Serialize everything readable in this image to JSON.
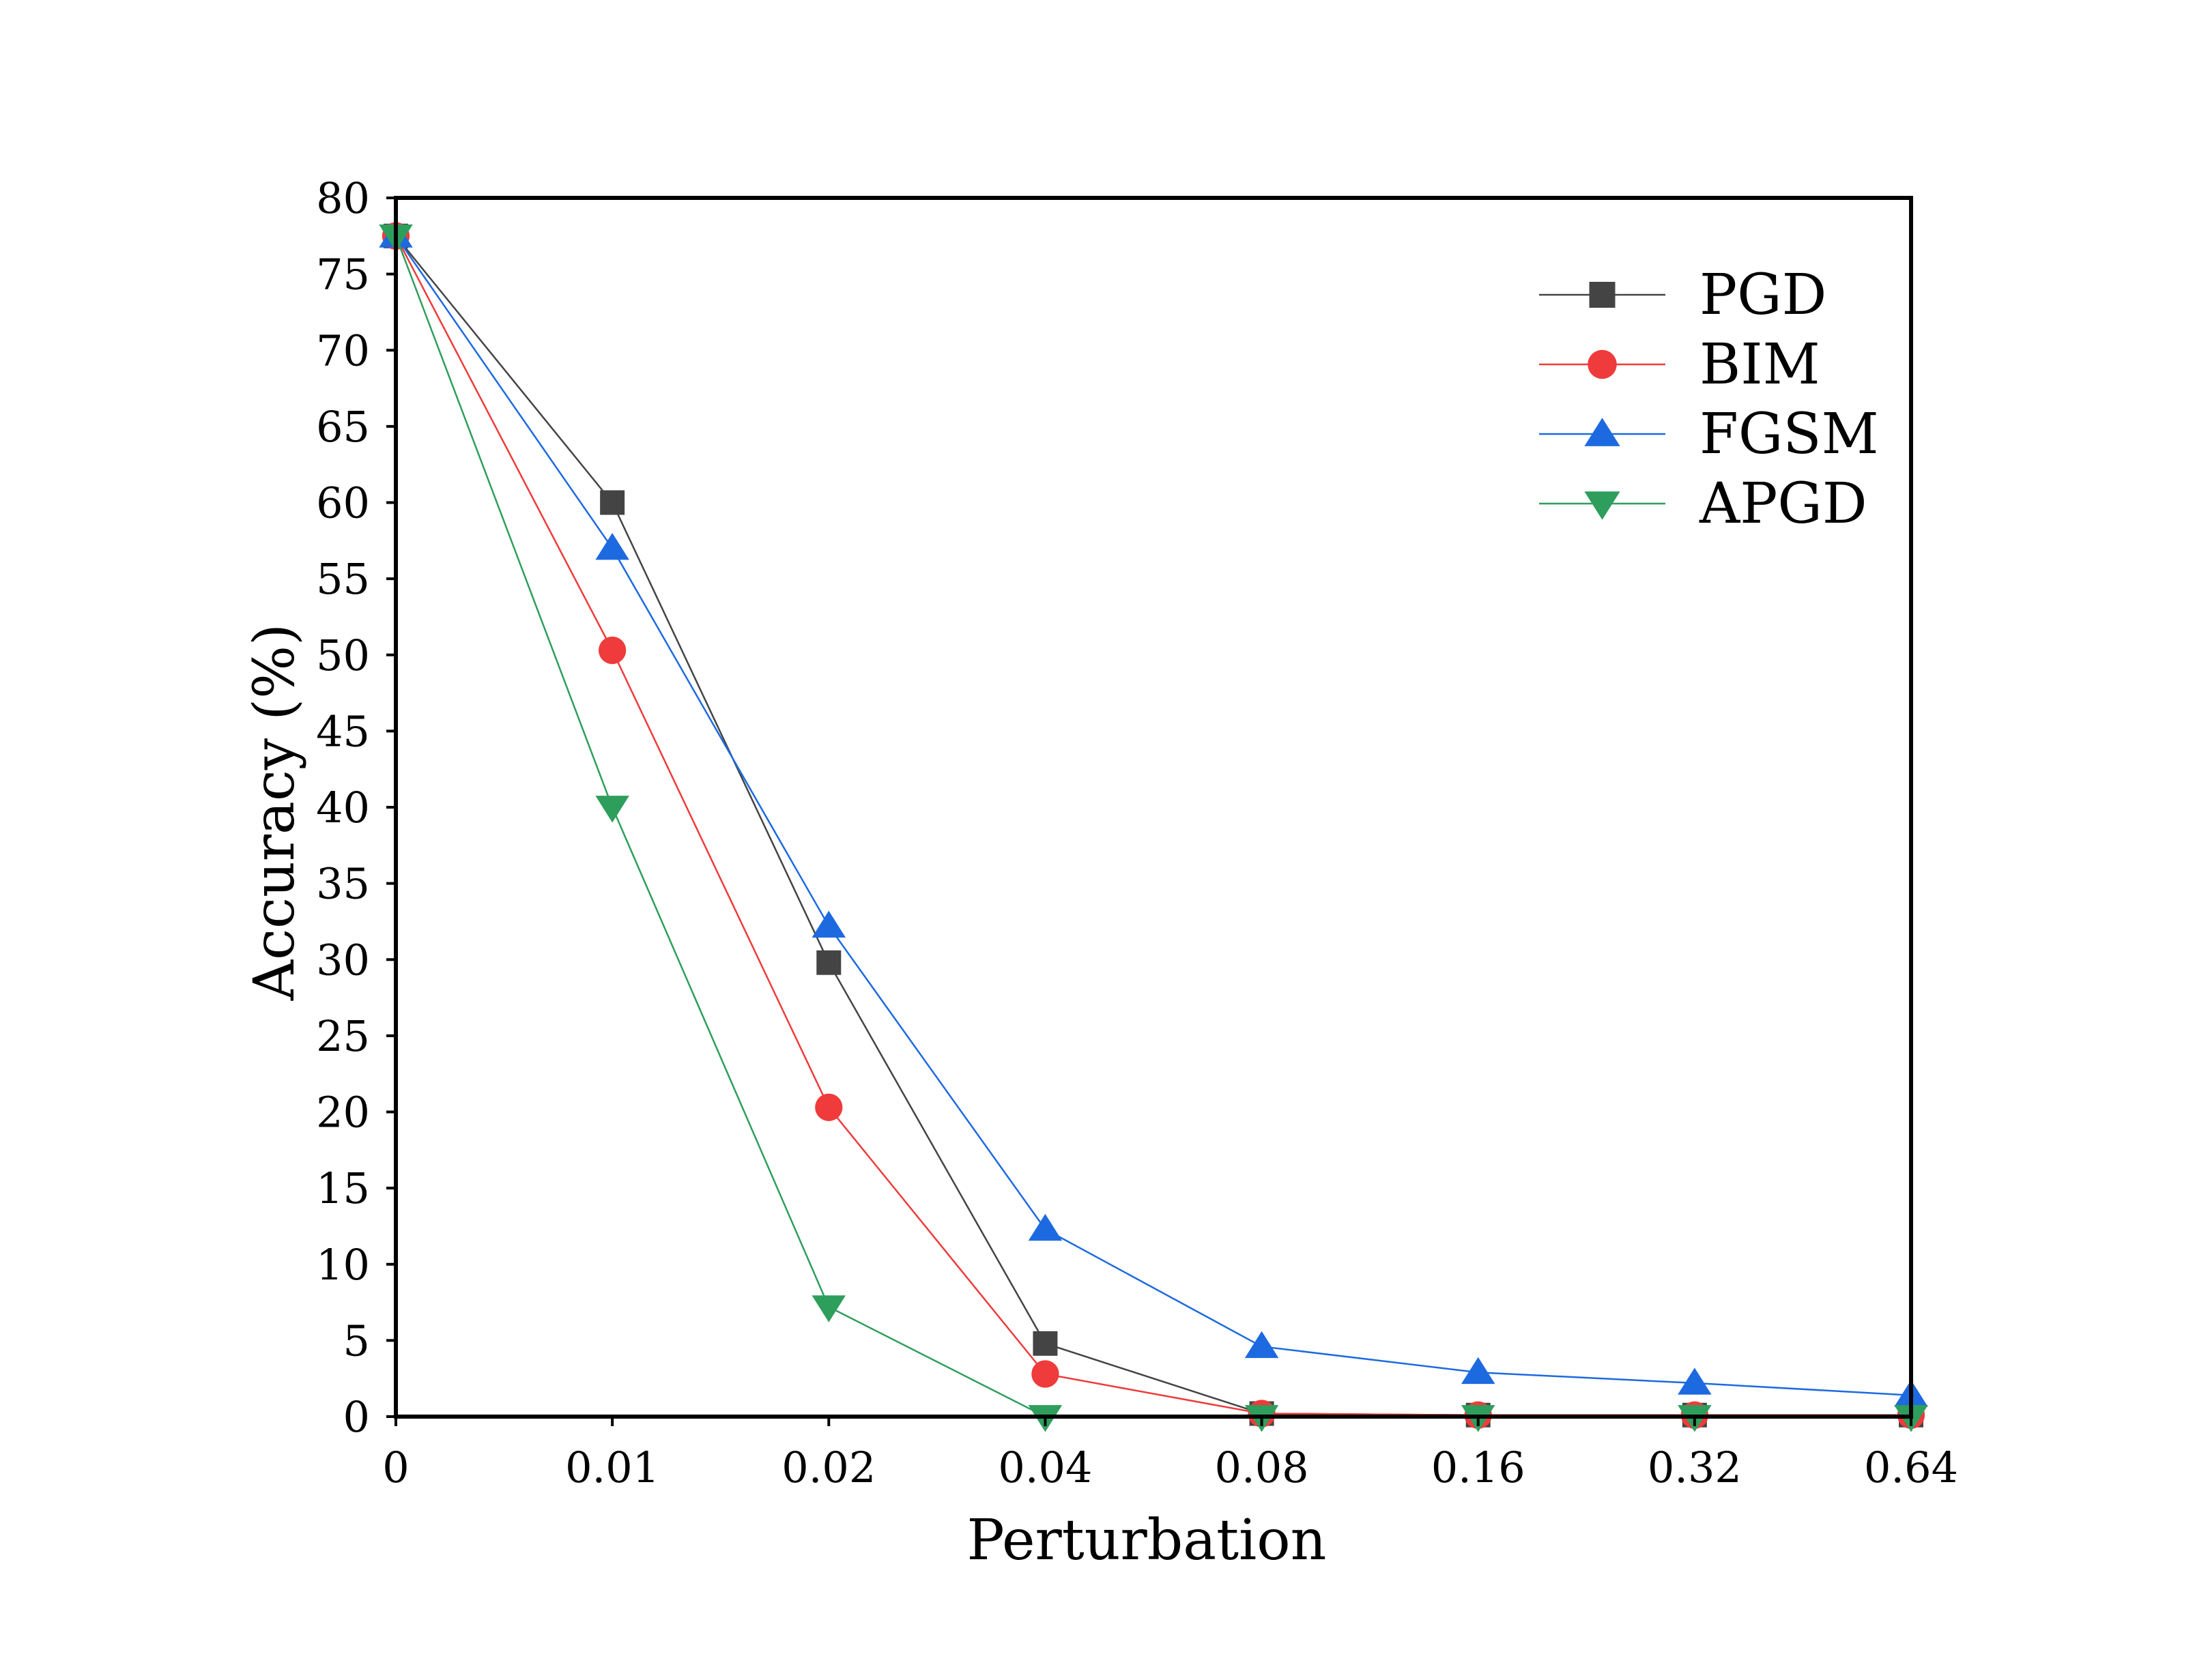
{
  "chart_data": {
    "type": "line",
    "title": "",
    "xlabel": "Perturbation",
    "ylabel": "Accuracy  (%)",
    "categories": [
      "0",
      "0.01",
      "0.02",
      "0.04",
      "0.08",
      "0.16",
      "0.32",
      "0.64"
    ],
    "ylim": [
      0,
      80
    ],
    "yticks": [
      "0",
      "5",
      "10",
      "15",
      "20",
      "25",
      "30",
      "35",
      "40",
      "45",
      "50",
      "55",
      "60",
      "65",
      "70",
      "75",
      "80"
    ],
    "grid": false,
    "legend_position": "top-right",
    "series": [
      {
        "name": "PGD",
        "color": "#444444",
        "marker": "square",
        "values": [
          77.5,
          60.0,
          29.8,
          4.8,
          0.2,
          0.1,
          0.1,
          0.1
        ]
      },
      {
        "name": "BIM",
        "color": "#ef3b3b",
        "marker": "circle",
        "values": [
          77.5,
          50.3,
          20.3,
          2.8,
          0.2,
          0.1,
          0.1,
          0.1
        ]
      },
      {
        "name": "FGSM",
        "color": "#1d6ae0",
        "marker": "triangle-up",
        "values": [
          77.5,
          57.0,
          32.2,
          12.3,
          4.6,
          2.9,
          2.2,
          1.4
        ]
      },
      {
        "name": "APGD",
        "color": "#2e9e5c",
        "marker": "triangle-down",
        "values": [
          77.5,
          40.0,
          7.2,
          0.0,
          0.0,
          0.0,
          0.0,
          0.0
        ]
      }
    ]
  }
}
